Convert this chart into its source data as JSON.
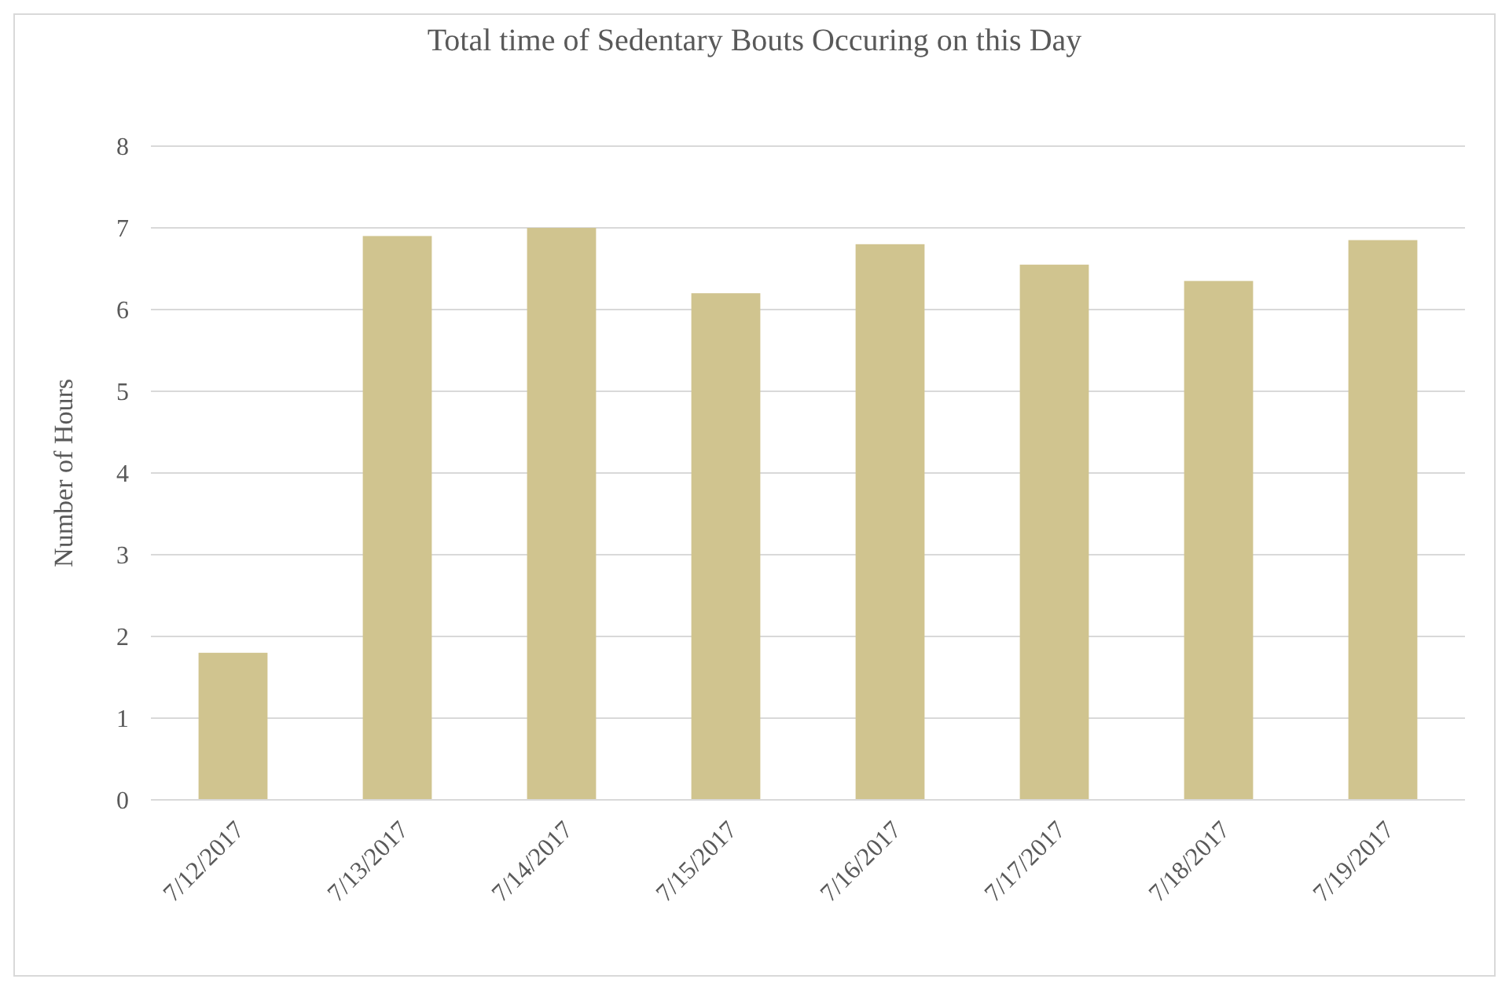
{
  "chart_data": {
    "type": "bar",
    "title": "Total time of Sedentary Bouts Occuring on this Day",
    "ylabel": "Number of Hours",
    "categories": [
      "7/12/2017",
      "7/13/2017",
      "7/14/2017",
      "7/15/2017",
      "7/16/2017",
      "7/17/2017",
      "7/18/2017",
      "7/19/2017"
    ],
    "values": [
      1.8,
      6.9,
      7.0,
      6.2,
      6.8,
      6.55,
      6.35,
      6.85
    ],
    "color": "#d0c48f",
    "ylim": [
      0,
      8
    ],
    "yticks": [
      0,
      1,
      2,
      3,
      4,
      5,
      6,
      7,
      8
    ],
    "grid": "y"
  }
}
